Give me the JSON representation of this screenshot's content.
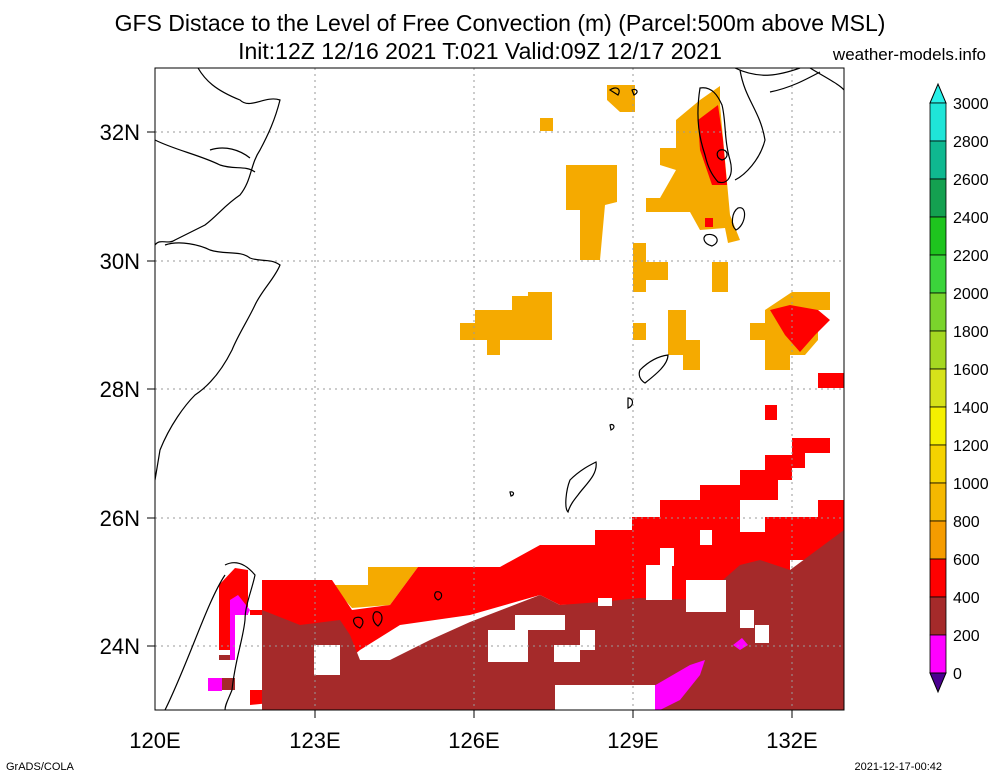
{
  "title_line1": "GFS Distace to the Level of Free Convection (m) (Parcel:500m above MSL)",
  "title_line2": "Init:12Z 12/16 2021 T:021 Valid:09Z 12/17 2021",
  "site": "weather-models.info",
  "footer_left": "GrADS/COLA",
  "footer_right": "2021-12-17-00:42",
  "lon_labels": [
    "120E",
    "123E",
    "126E",
    "129E",
    "132E"
  ],
  "lat_labels": [
    "32N",
    "30N",
    "28N",
    "26N",
    "24N"
  ],
  "colorbar": {
    "labels": [
      "3000",
      "2800",
      "2600",
      "2400",
      "2200",
      "2000",
      "1800",
      "1600",
      "1400",
      "1200",
      "1000",
      "800",
      "600",
      "400",
      "200",
      "0"
    ],
    "colors": [
      "#1fe5d8",
      "#0fb890",
      "#14a050",
      "#1ec41e",
      "#3bd43b",
      "#7ad42c",
      "#a5d822",
      "#d6e21a",
      "#f5f000",
      "#f5d200",
      "#f5b800",
      "#f59c00",
      "#ff0000",
      "#a52a2a",
      "#ff00ff",
      "#4b0090"
    ],
    "top_triangle_color": "#28f0e8",
    "bottom_triangle_color": "#4b0090"
  },
  "map_colors": {
    "orange": "#f5aa00",
    "red": "#ff0000",
    "brown": "#a52a2a",
    "magenta": "#ff00ff"
  }
}
